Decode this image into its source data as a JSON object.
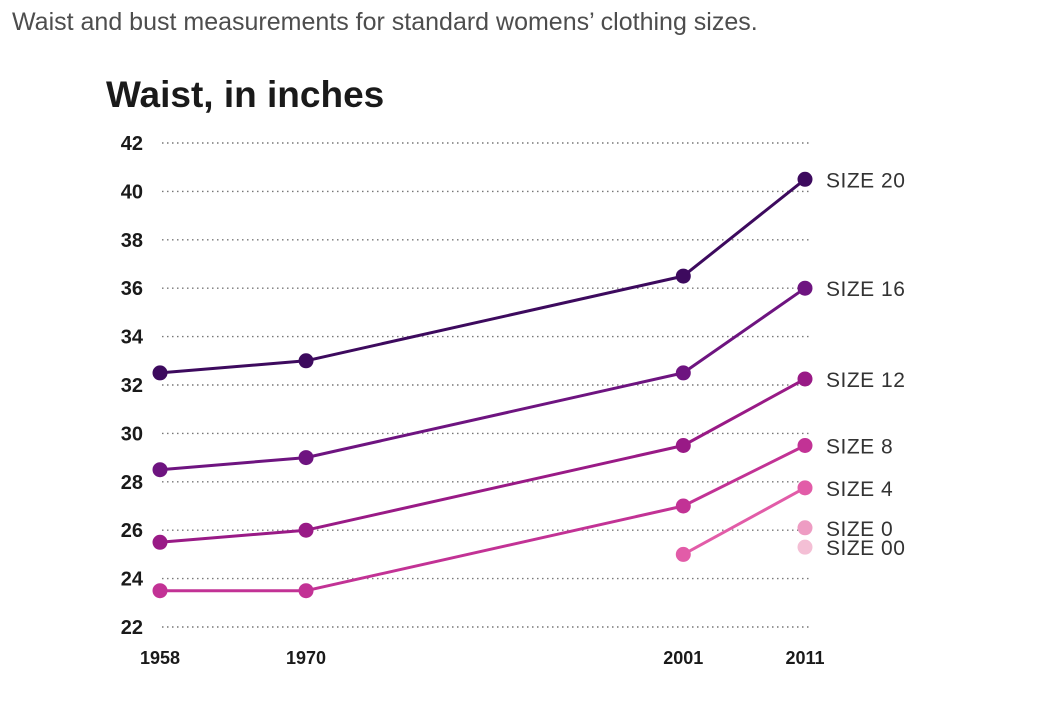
{
  "subtitle": "Waist and bust measurements for standard womens’ clothing sizes.",
  "chart_data": {
    "type": "line",
    "title": "Waist, in inches",
    "xlabel": "",
    "ylabel": "",
    "ylim": [
      22,
      42
    ],
    "yticks": [
      22,
      24,
      26,
      28,
      30,
      32,
      34,
      36,
      38,
      40,
      42
    ],
    "xticks": [
      1958,
      1970,
      2001,
      2011
    ],
    "grid": true,
    "series": [
      {
        "name": "SIZE 20",
        "color": "#3d0a5e",
        "x": [
          1958,
          1970,
          2001,
          2011
        ],
        "values": [
          32.5,
          33,
          36.5,
          40.5
        ]
      },
      {
        "name": "SIZE 16",
        "color": "#6e1480",
        "x": [
          1958,
          1970,
          2001,
          2011
        ],
        "values": [
          28.5,
          29,
          32.5,
          36
        ]
      },
      {
        "name": "SIZE 12",
        "color": "#991a86",
        "x": [
          1958,
          1970,
          2001,
          2011
        ],
        "values": [
          25.5,
          26,
          29.5,
          32.25
        ]
      },
      {
        "name": "SIZE 8",
        "color": "#c23295",
        "x": [
          1958,
          1970,
          2001,
          2011
        ],
        "values": [
          23.5,
          23.5,
          27,
          29.5
        ]
      },
      {
        "name": "SIZE 4",
        "color": "#e25ca8",
        "x": [
          2001,
          2011
        ],
        "values": [
          25,
          27.75
        ]
      },
      {
        "name": "SIZE 0",
        "color": "#ee9cc3",
        "x": [
          2011
        ],
        "values": [
          26.1
        ]
      },
      {
        "name": "SIZE 00",
        "color": "#f4bfd5",
        "x": [
          2011
        ],
        "values": [
          25.3
        ]
      }
    ]
  }
}
